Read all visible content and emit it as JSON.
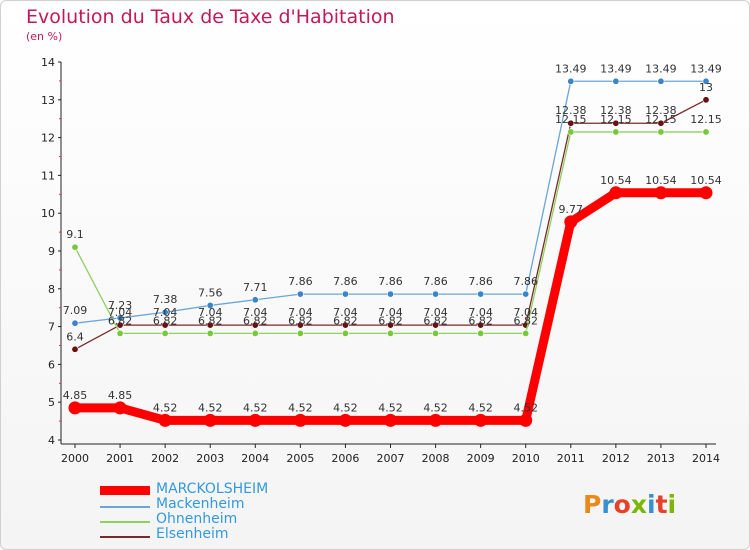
{
  "title": "Evolution du Taux de Taxe d'Habitation",
  "unit": "(en %)",
  "logo": {
    "text": "Proxiti",
    "colors": [
      "#e88a1a",
      "#3a8fd0",
      "#e8402a",
      "#7ab800",
      "#3a8fd0",
      "#e8402a",
      "#7ab800"
    ]
  },
  "chart_data": {
    "type": "line",
    "x": [
      "2000",
      "2001",
      "2002",
      "2003",
      "2004",
      "2005",
      "2006",
      "2007",
      "2008",
      "2009",
      "2010",
      "2011",
      "2012",
      "2013",
      "2014"
    ],
    "ylim": [
      4,
      14
    ],
    "yticks": [
      4,
      5,
      6,
      7,
      8,
      9,
      10,
      11,
      12,
      13,
      14
    ],
    "legend_position": "bottom-left",
    "grid": false,
    "series": [
      {
        "name": "MARCKOLSHEIM",
        "color": "#ff0000",
        "values": [
          4.85,
          4.85,
          4.52,
          4.52,
          4.52,
          4.52,
          4.52,
          4.52,
          4.52,
          4.52,
          4.52,
          9.77,
          10.54,
          10.54,
          10.54
        ],
        "labels": [
          "4.85",
          "4.85",
          "4.52",
          "4.52",
          "4.52",
          "4.52",
          "4.52",
          "4.52",
          "4.52",
          "4.52",
          "4.52",
          "9.77",
          "10.54",
          "10.54",
          "10.54"
        ]
      },
      {
        "name": "Mackenheim",
        "color": "#6aa6d8",
        "marker": "#3a85c8",
        "values": [
          7.09,
          7.23,
          7.38,
          7.56,
          7.71,
          7.86,
          7.86,
          7.86,
          7.86,
          7.86,
          7.86,
          13.49,
          13.49,
          13.49,
          13.49
        ],
        "labels": [
          "7.09",
          "7.23",
          "7.38",
          "7.56",
          "7.71",
          "7.86",
          "7.86",
          "7.86",
          "7.86",
          "7.86",
          "7.86",
          "13.49",
          "13.49",
          "13.49",
          "13.49"
        ]
      },
      {
        "name": "Ohnenheim",
        "color": "#8fd060",
        "marker": "#77c83a",
        "values": [
          9.1,
          6.82,
          6.82,
          6.82,
          6.82,
          6.82,
          6.82,
          6.82,
          6.82,
          6.82,
          6.82,
          12.15,
          12.15,
          12.15,
          12.15
        ],
        "labels": [
          "9.1",
          "6.82",
          "6.82",
          "6.82",
          "6.82",
          "6.82",
          "6.82",
          "6.82",
          "6.82",
          "6.82",
          "6.82",
          "12.15",
          "12.15",
          "12.15",
          "12.15"
        ]
      },
      {
        "name": "Elsenheim",
        "color": "#7a2a2a",
        "marker": "#6a1010",
        "values": [
          6.4,
          7.04,
          7.04,
          7.04,
          7.04,
          7.04,
          7.04,
          7.04,
          7.04,
          7.04,
          7.04,
          12.38,
          12.38,
          12.38,
          13
        ],
        "labels": [
          "6.4",
          "7.04",
          "7.04",
          "7.04",
          "7.04",
          "7.04",
          "7.04",
          "7.04",
          "7.04",
          "7.04",
          "7.04",
          "12.38",
          "12.38",
          "12.38",
          "13"
        ]
      }
    ]
  }
}
